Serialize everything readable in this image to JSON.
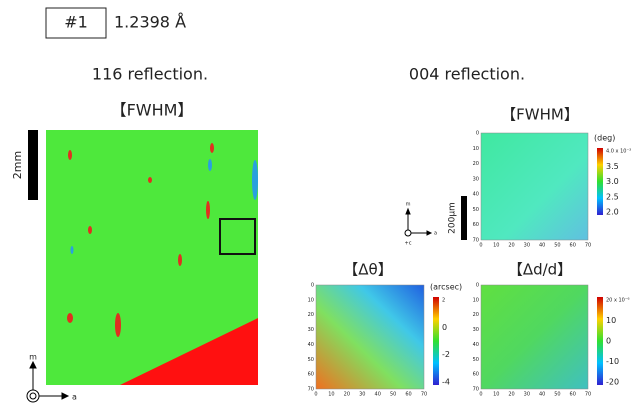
{
  "header": {
    "id": "#1",
    "wavelength": "1.2398 Å"
  },
  "left": {
    "heading": "116 reflection.",
    "map_title": "【FWHM】",
    "scale_bar": "2mm",
    "axis_up": "m",
    "axis_right": "a"
  },
  "right": {
    "heading": "004 reflection.",
    "scale_bar": "200μm",
    "axis_up": "m",
    "axis_right": "a",
    "axis_out": "+c",
    "maps": [
      {
        "title": "【FWHM】",
        "unit": "(deg)",
        "colorbar_ticks": [
          "4.0 x 10⁻³",
          "3.5",
          "3.0",
          "2.5",
          "2.0"
        ],
        "x_ticks": [
          0,
          10,
          20,
          30,
          40,
          50,
          60,
          70
        ],
        "y_ticks": [
          0,
          10,
          20,
          30,
          40,
          50,
          60,
          70
        ]
      },
      {
        "title": "【Δθ】",
        "unit": "(arcsec)",
        "colorbar_ticks": [
          "2",
          "0",
          "-2",
          "-4"
        ],
        "x_ticks": [
          0,
          10,
          20,
          30,
          40,
          50,
          60,
          70
        ],
        "y_ticks": [
          0,
          10,
          20,
          30,
          40,
          50,
          60,
          70
        ]
      },
      {
        "title": "【Δd/d】",
        "colorbar_ticks": [
          "20 x 10⁻⁶",
          "10",
          "0",
          "-10",
          "-20"
        ],
        "x_ticks": [
          0,
          10,
          20,
          30,
          40,
          50,
          60,
          70
        ],
        "y_ticks": [
          0,
          10,
          20,
          30,
          40,
          50,
          60,
          70
        ]
      }
    ]
  }
}
